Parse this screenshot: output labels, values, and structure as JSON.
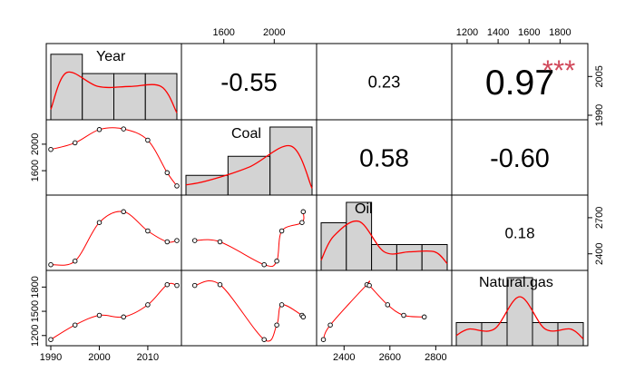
{
  "chart_data": {
    "type": "scatter-matrix",
    "variables": [
      "Year",
      "Coal",
      "Oil",
      "Natural.gas"
    ],
    "ranges": {
      "Year": [
        1990,
        2016
      ],
      "Coal": [
        1300,
        2300
      ],
      "Oil": [
        2300,
        2850
      ],
      "Natural.gas": [
        1130,
        1950
      ]
    },
    "ticks": {
      "Year": [
        1990,
        2000,
        2010
      ],
      "Year_right": [
        1990,
        2005
      ],
      "Coal_left": [
        1600,
        2000
      ],
      "Coal_top": [
        1600,
        2000
      ],
      "Oil_right": [
        2400,
        2700
      ],
      "Oil_bottom": [
        2400,
        2600,
        2800
      ],
      "Gas_left": [
        1200,
        1500,
        1800
      ],
      "Gas_top": [
        1200,
        1400,
        1600,
        1800
      ]
    },
    "observations": [
      {
        "year": 1990,
        "coal": 1920,
        "oil": 2310,
        "gas": 1150
      },
      {
        "year": 1995,
        "coal": 2020,
        "oil": 2340,
        "gas": 1330
      },
      {
        "year": 2000,
        "coal": 2220,
        "oil": 2660,
        "gas": 1450
      },
      {
        "year": 2005,
        "coal": 2230,
        "oil": 2750,
        "gas": 1430
      },
      {
        "year": 2010,
        "coal": 2060,
        "oil": 2590,
        "gas": 1580
      },
      {
        "year": 2014,
        "coal": 1570,
        "oil": 2500,
        "gas": 1830
      },
      {
        "year": 2016,
        "coal": 1370,
        "oil": 2510,
        "gas": 1820
      }
    ],
    "histograms": {
      "Year": [
        0.95,
        0.67,
        0.67,
        0.67
      ],
      "Coal": [
        0.29,
        0.57,
        1.0
      ],
      "Oil": [
        0.7,
        1.0,
        0.38,
        0.38,
        0.38
      ],
      "Natural.gas": [
        0.34,
        0.34,
        1.0,
        0.34,
        0.34
      ]
    },
    "correlations": [
      {
        "row": 0,
        "col": 1,
        "value": "-0.55",
        "stars": ""
      },
      {
        "row": 0,
        "col": 2,
        "value": "0.23",
        "stars": ""
      },
      {
        "row": 0,
        "col": 3,
        "value": "0.97",
        "stars": "***"
      },
      {
        "row": 1,
        "col": 2,
        "value": "0.58",
        "stars": ""
      },
      {
        "row": 1,
        "col": 3,
        "value": "-0.60",
        "stars": ""
      },
      {
        "row": 2,
        "col": 3,
        "value": "0.18",
        "stars": ""
      }
    ],
    "colors": {
      "smooth": "#ff0000",
      "bar_fill": "#d3d3d3",
      "stars": "#d1495b"
    }
  }
}
